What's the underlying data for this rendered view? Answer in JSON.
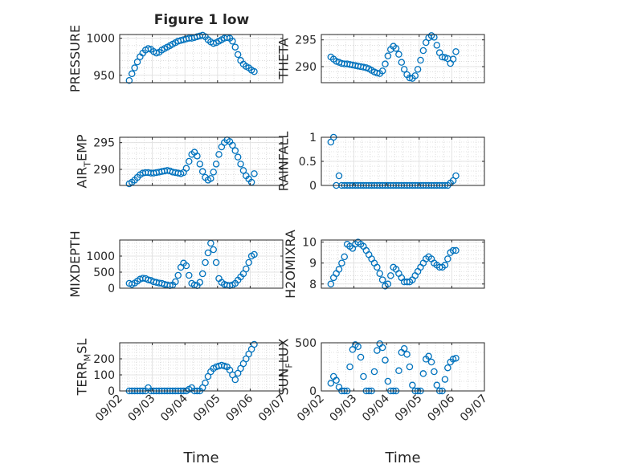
{
  "figure": {
    "title": "Figure 1 low",
    "marker_color": "#0072bd",
    "date_ticks": [
      "09/02",
      "09/03",
      "09/04",
      "09/05",
      "09/06",
      "09/07"
    ],
    "xlabel": "Time"
  },
  "chart_data": [
    {
      "type": "scatter",
      "ylabel": "PRESSURE",
      "ylim": [
        940,
        1005
      ],
      "yticks": [
        950,
        1000
      ],
      "xlim": [
        "09/02",
        "09/07"
      ],
      "grid": true,
      "x_start": "09/02 07:00",
      "x_step_hours": 2,
      "values": [
        943,
        952,
        960,
        968,
        975,
        980,
        984,
        986,
        985,
        982,
        980,
        981,
        984,
        986,
        988,
        990,
        992,
        994,
        996,
        997,
        998,
        999,
        1000,
        1000,
        1001,
        1002,
        1003,
        1004,
        1002,
        998,
        995,
        993,
        994,
        996,
        998,
        1000,
        1001,
        1000,
        996,
        988,
        978,
        970,
        965,
        962,
        960,
        957,
        955
      ]
    },
    {
      "type": "scatter",
      "ylabel": "THETA",
      "ylim": [
        287,
        296
      ],
      "yticks": [
        290,
        295
      ],
      "xlim": [
        "09/02",
        "09/07"
      ],
      "grid": true,
      "x_start": "09/02 07:00",
      "x_step_hours": 2,
      "values": [
        291.8,
        291.4,
        291.0,
        290.8,
        290.6,
        290.5,
        290.5,
        290.4,
        290.3,
        290.2,
        290.1,
        290.0,
        289.9,
        289.8,
        289.6,
        289.3,
        289.0,
        288.8,
        288.7,
        289.2,
        290.5,
        292.0,
        293.2,
        293.8,
        293.4,
        292.3,
        290.8,
        289.5,
        288.5,
        287.9,
        287.8,
        288.3,
        289.5,
        291.2,
        293.0,
        294.5,
        295.4,
        295.8,
        295.5,
        294.0,
        292.6,
        291.8,
        291.7,
        291.5,
        290.6,
        291.4,
        292.8
      ]
    },
    {
      "type": "scatter",
      "ylabel": "AIR_TEMP",
      "ylim": [
        287,
        296
      ],
      "yticks": [
        290,
        295
      ],
      "xlim": [
        "09/02",
        "09/07"
      ],
      "grid": true,
      "x_start": "09/02 07:00",
      "x_step_hours": 2,
      "values": [
        287.3,
        287.6,
        288.0,
        288.5,
        289.0,
        289.3,
        289.4,
        289.4,
        289.3,
        289.3,
        289.4,
        289.5,
        289.6,
        289.7,
        289.8,
        289.7,
        289.5,
        289.4,
        289.3,
        289.2,
        289.4,
        290.2,
        291.5,
        292.8,
        293.2,
        292.5,
        291.0,
        289.6,
        288.5,
        288.0,
        288.3,
        289.5,
        291.0,
        292.8,
        294.2,
        295.0,
        295.5,
        295.2,
        294.5,
        293.5,
        292.3,
        291.0,
        289.8,
        288.8,
        288.2,
        287.6,
        289.2
      ]
    },
    {
      "type": "scatter",
      "ylabel": "RAINFALL",
      "ylim": [
        0,
        1
      ],
      "yticks": [
        0,
        0.5,
        1
      ],
      "xlim": [
        "09/02",
        "09/07"
      ],
      "grid": true,
      "x_start": "09/02 07:00",
      "x_step_hours": 2,
      "values": [
        0.9,
        1.0,
        0,
        0.2,
        0,
        0,
        0,
        0,
        0,
        0,
        0,
        0,
        0,
        0,
        0,
        0,
        0,
        0,
        0,
        0,
        0,
        0,
        0,
        0,
        0,
        0,
        0,
        0,
        0,
        0,
        0,
        0,
        0,
        0,
        0,
        0,
        0,
        0,
        0,
        0,
        0,
        0,
        0,
        0,
        0.05,
        0.1,
        0.2
      ]
    },
    {
      "type": "scatter",
      "ylabel": "MIXDEPTH",
      "ylim": [
        0,
        1500
      ],
      "yticks": [
        0,
        500,
        1000
      ],
      "xlim": [
        "09/02",
        "09/07"
      ],
      "grid": true,
      "x_start": "09/02 07:00",
      "x_step_hours": 2,
      "values": [
        150,
        120,
        160,
        220,
        280,
        310,
        300,
        260,
        240,
        200,
        180,
        160,
        150,
        120,
        100,
        80,
        100,
        200,
        400,
        650,
        780,
        700,
        400,
        150,
        100,
        80,
        180,
        450,
        800,
        1100,
        1400,
        1200,
        800,
        300,
        180,
        120,
        90,
        80,
        100,
        150,
        250,
        350,
        450,
        600,
        800,
        1000,
        1050
      ]
    },
    {
      "type": "scatter",
      "ylabel": "H2OMIXRA",
      "ylim": [
        7.8,
        10.1
      ],
      "yticks": [
        8,
        9,
        10
      ],
      "xlim": [
        "09/02",
        "09/07"
      ],
      "grid": true,
      "x_start": "09/02 07:00",
      "x_step_hours": 2,
      "values": [
        8.0,
        8.3,
        8.5,
        8.7,
        9.0,
        9.3,
        9.9,
        9.8,
        9.7,
        9.9,
        10.0,
        9.9,
        9.8,
        9.6,
        9.4,
        9.2,
        9.0,
        8.8,
        8.5,
        8.2,
        7.9,
        8.0,
        8.4,
        8.8,
        8.7,
        8.5,
        8.3,
        8.1,
        8.1,
        8.1,
        8.2,
        8.4,
        8.6,
        8.8,
        9.0,
        9.2,
        9.3,
        9.2,
        9.0,
        8.9,
        8.8,
        8.8,
        8.9,
        9.2,
        9.5,
        9.6,
        9.6
      ]
    },
    {
      "type": "scatter",
      "ylabel": "TERR_MSL",
      "ylim": [
        0,
        300
      ],
      "yticks": [
        0,
        100,
        200
      ],
      "xlim": [
        "09/02",
        "09/07"
      ],
      "grid": true,
      "x_start": "09/02 07:00",
      "x_step_hours": 2,
      "values": [
        0,
        0,
        0,
        0,
        0,
        0,
        0,
        20,
        0,
        0,
        0,
        0,
        0,
        0,
        0,
        0,
        0,
        0,
        0,
        0,
        0,
        0,
        10,
        20,
        0,
        0,
        0,
        20,
        50,
        90,
        120,
        140,
        150,
        155,
        160,
        155,
        150,
        130,
        100,
        70,
        110,
        140,
        170,
        200,
        230,
        260,
        290
      ]
    },
    {
      "type": "scatter",
      "ylabel": "SUN_FLUX",
      "ylim": [
        0,
        500
      ],
      "yticks": [
        0,
        500
      ],
      "xlim": [
        "09/02",
        "09/07"
      ],
      "grid": true,
      "x_start": "09/02 07:00",
      "x_step_hours": 2,
      "values": [
        80,
        150,
        110,
        40,
        0,
        0,
        0,
        250,
        430,
        480,
        460,
        350,
        150,
        0,
        0,
        0,
        200,
        420,
        490,
        450,
        320,
        100,
        0,
        0,
        0,
        210,
        400,
        440,
        380,
        250,
        60,
        0,
        0,
        0,
        180,
        330,
        360,
        300,
        200,
        60,
        0,
        0,
        120,
        240,
        300,
        330,
        340
      ]
    }
  ]
}
